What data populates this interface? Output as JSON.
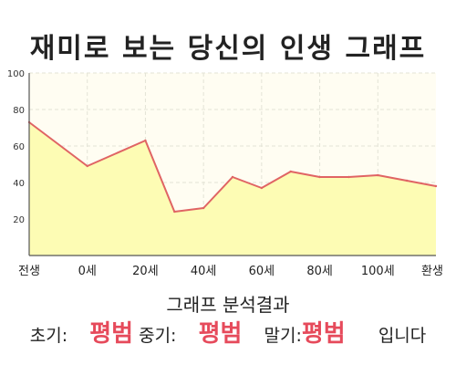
{
  "chart_data": {
    "type": "area",
    "title": "재미로 보는 당신의 인생 그래프",
    "categories": [
      "전생",
      "0세",
      "20세",
      "40세",
      "60세",
      "80세",
      "100세",
      "환생"
    ],
    "x": [
      -20,
      0,
      20,
      30,
      40,
      50,
      60,
      70,
      80,
      90,
      100,
      110,
      120
    ],
    "y": [
      73,
      49,
      63,
      24,
      26,
      43,
      37,
      46,
      43,
      43,
      44,
      41,
      38
    ],
    "ylim": [
      0,
      100
    ],
    "yticks": [
      20,
      40,
      60,
      80,
      100
    ],
    "grid": true,
    "colors": {
      "line": "#e06464",
      "fill": "#fdfcb4",
      "plot_bg": "#fffdf2",
      "grid": "#e3e3d6",
      "accent": "#e64a5b"
    }
  },
  "result": {
    "heading": "그래프 분석결과",
    "early_label": "초기:",
    "early_value": "평범",
    "middle_label": "중기:",
    "middle_value": "평범",
    "late_label": "말기:",
    "late_value": "평범",
    "suffix": "입니다"
  }
}
